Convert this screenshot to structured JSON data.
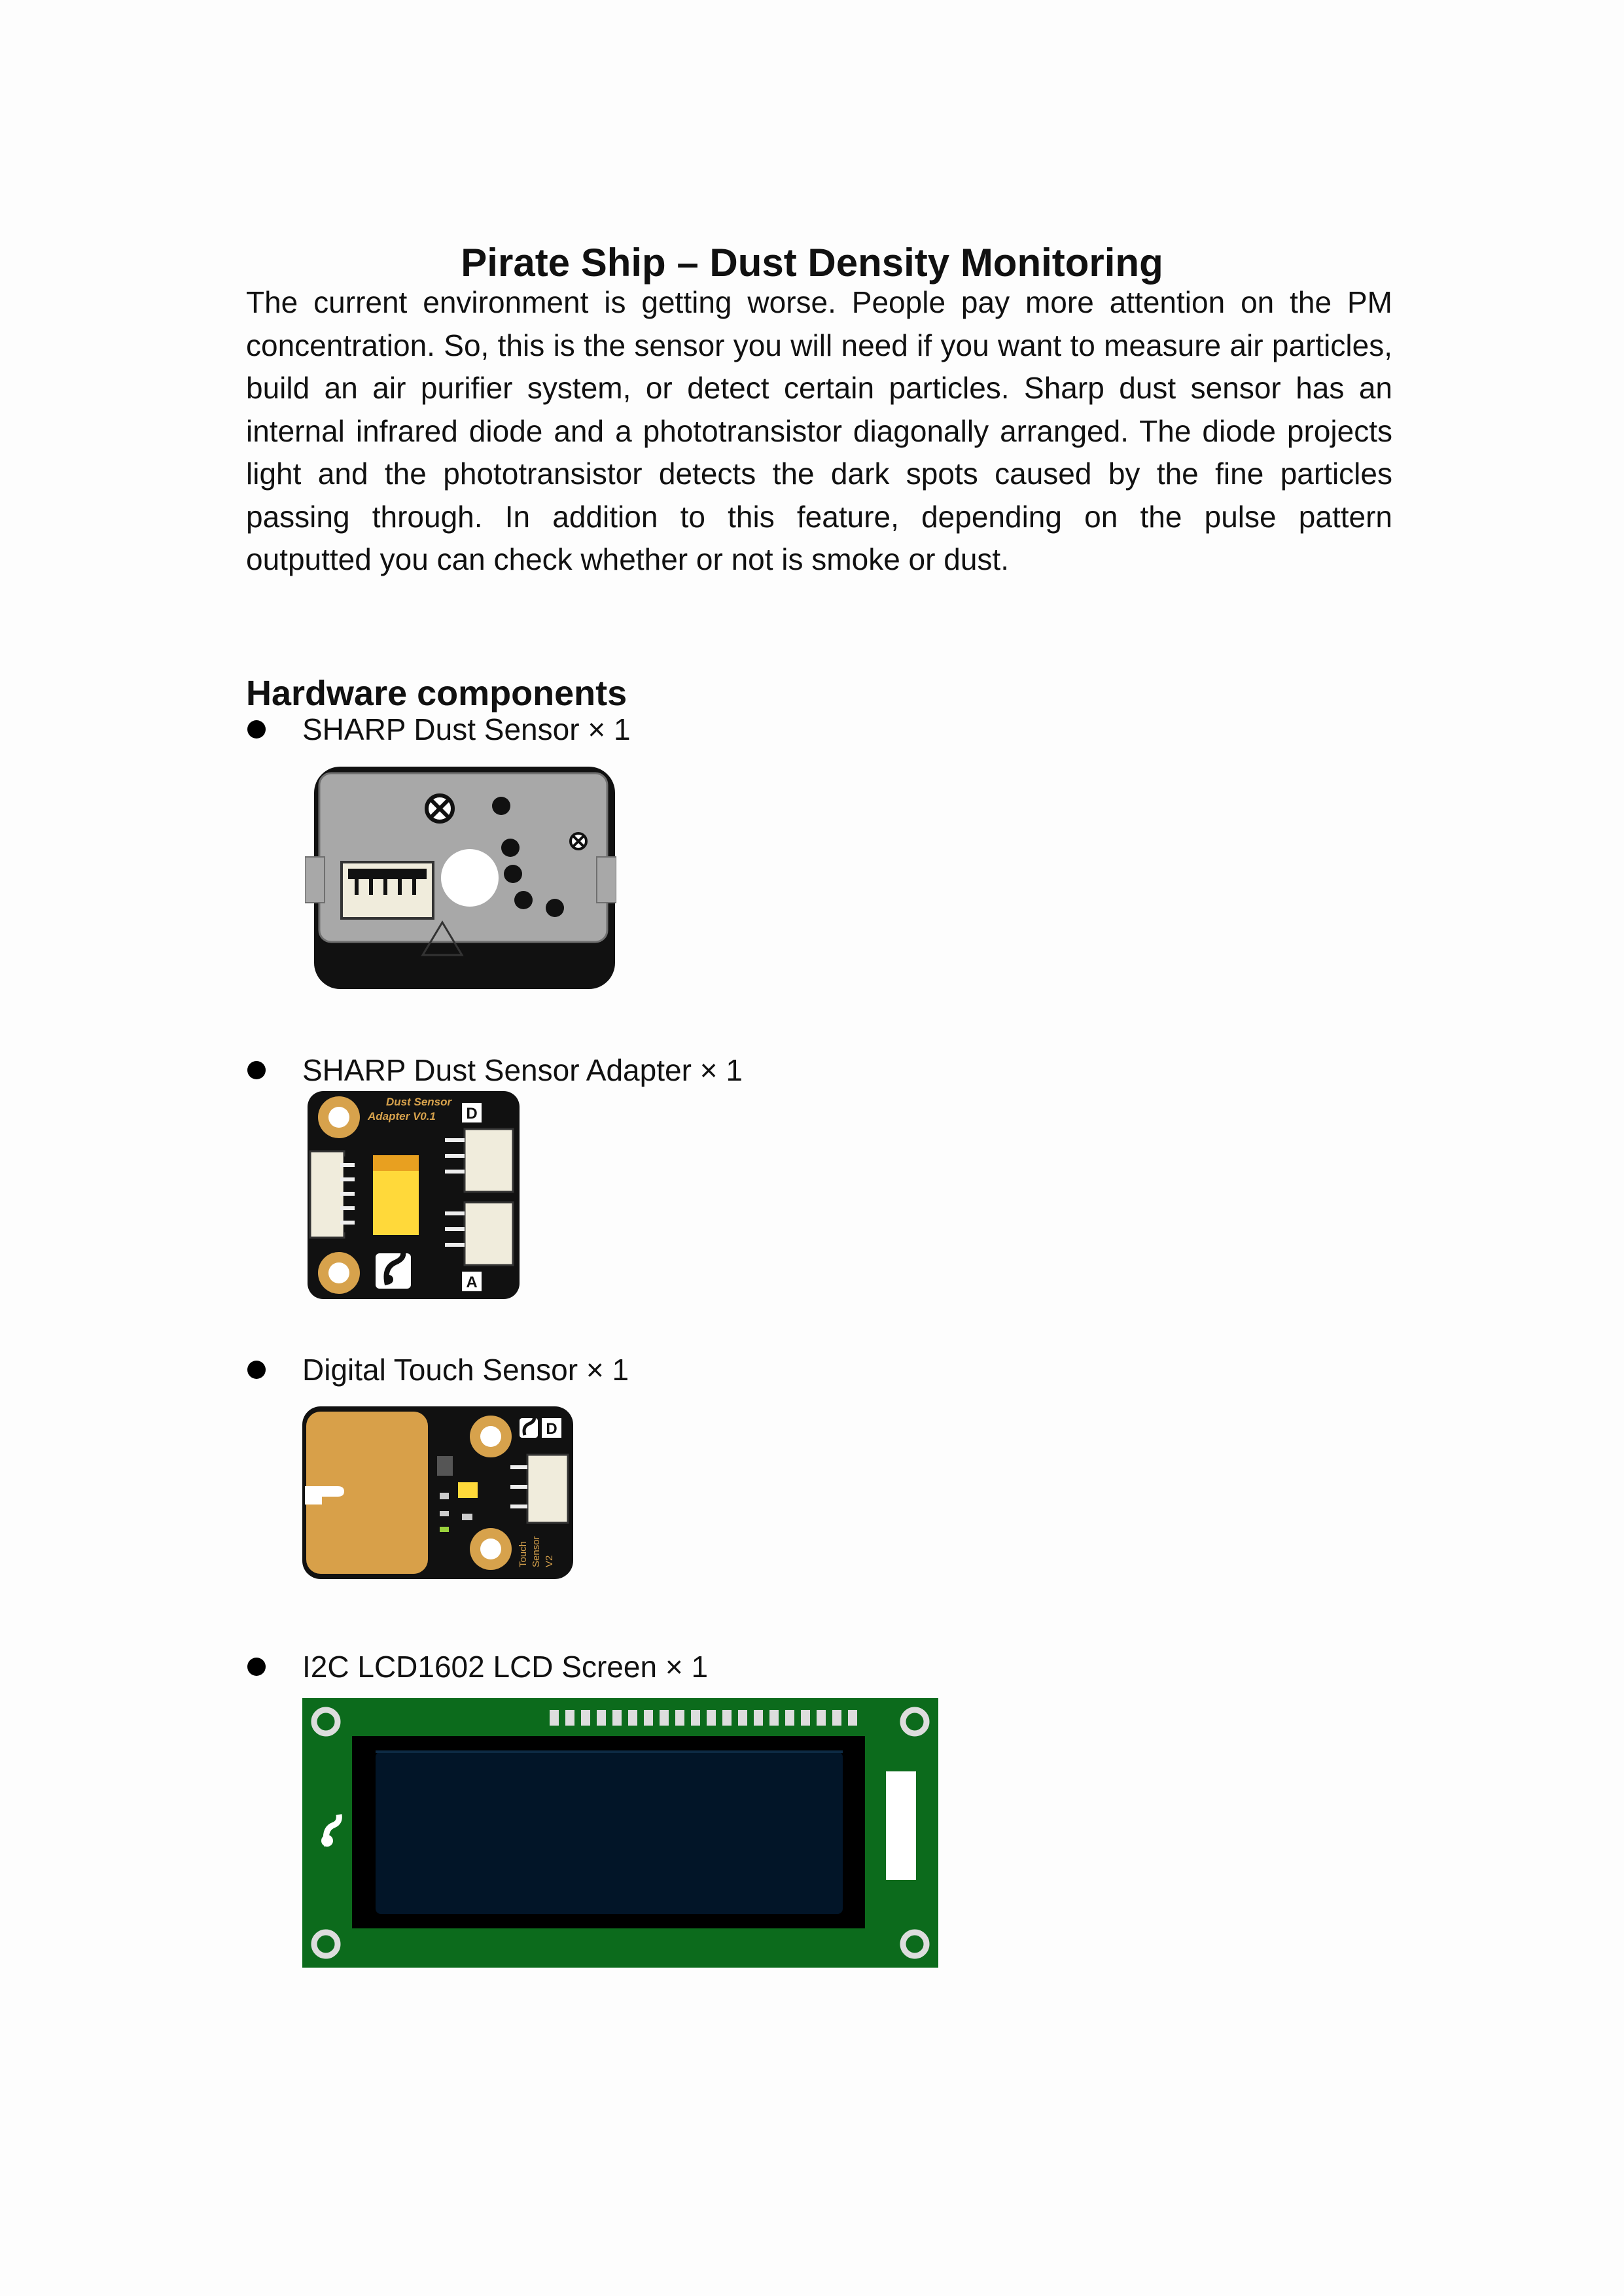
{
  "title": "Pirate Ship – Dust Density Monitoring",
  "intro_lines": [
    "The current environment is getting worse. People pay more attention on the PM",
    "concentration. So, this is the sensor you will need if you want to measure air particles,",
    "build an air purifier system, or detect certain particles. Sharp dust sensor has an",
    "internal infrared diode and a phototransistor diagonally arranged. The diode projects",
    "light and the phototransistor detects the dark spots caused by the fine particles",
    "passing through. In addition to this feature, depending on the pulse pattern",
    "outputted you can check whether or not is smoke or dust."
  ],
  "section": {
    "heading": "Hardware components"
  },
  "components": [
    {
      "label": "SHARP Dust Sensor × 1",
      "image": "sharp-dust-sensor"
    },
    {
      "label": "SHARP Dust Sensor Adapter × 1",
      "image": "dust-sensor-adapter",
      "board_text_1": "Dust Sensor",
      "board_text_2": "Adapter V0.1",
      "pin_d": "D",
      "pin_a": "A"
    },
    {
      "label": "Digital Touch Sensor × 1",
      "image": "digital-touch-sensor",
      "pin_d": "D",
      "board_text_1": "Touch",
      "board_text_2": "Sensor",
      "board_text_3": "V2"
    },
    {
      "label": "I2C LCD1602 LCD Screen × 1",
      "image": "lcd1602-screen"
    }
  ],
  "colors": {
    "pcb_black": "#111111",
    "pcb_green": "#0c6b1c",
    "lcd_blue": "#021528",
    "touch_pad": "#d8a049",
    "sensor_gray": "#a8a8a8"
  }
}
